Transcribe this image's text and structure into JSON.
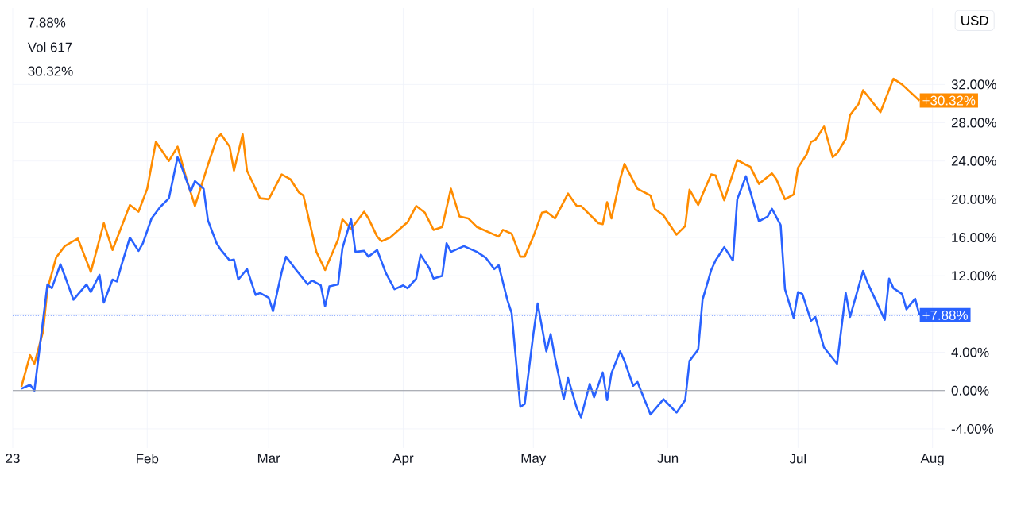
{
  "chart_data": {
    "type": "line",
    "xlim": [
      "2023-01-01",
      "2023-08-04"
    ],
    "ylim": [
      -6,
      40
    ],
    "xticks": [
      {
        "value": "2023-01-01",
        "label": "23"
      },
      {
        "value": "2023-02-01",
        "label": "Feb"
      },
      {
        "value": "2023-03-01",
        "label": "Mar"
      },
      {
        "value": "2023-04-01",
        "label": "Apr"
      },
      {
        "value": "2023-05-01",
        "label": "May"
      },
      {
        "value": "2023-06-01",
        "label": "Jun"
      },
      {
        "value": "2023-07-01",
        "label": "Jul"
      },
      {
        "value": "2023-08-01",
        "label": "Aug"
      }
    ],
    "yticks": [
      {
        "value": -4,
        "label": "-4.00%"
      },
      {
        "value": 0,
        "label": "0.00%"
      },
      {
        "value": 4,
        "label": "4.00%"
      },
      {
        "value": 8,
        "label": null
      },
      {
        "value": 12,
        "label": "12.00%"
      },
      {
        "value": 16,
        "label": "16.00%"
      },
      {
        "value": 20,
        "label": "20.00%"
      },
      {
        "value": 24,
        "label": "24.00%"
      },
      {
        "value": 28,
        "label": "28.00%"
      },
      {
        "value": 32,
        "label": "32.00%"
      }
    ],
    "grid": true,
    "series": [
      {
        "color": "#ff8c00",
        "x": [
          "2023-01-03",
          "2023-01-05",
          "2023-01-06",
          "2023-01-08",
          "2023-01-09",
          "2023-01-11",
          "2023-01-13",
          "2023-01-16",
          "2023-01-19",
          "2023-01-22",
          "2023-01-24",
          "2023-01-28",
          "2023-01-30",
          "2023-02-01",
          "2023-02-03",
          "2023-02-06",
          "2023-02-08",
          "2023-02-10",
          "2023-02-12",
          "2023-02-15",
          "2023-02-17",
          "2023-02-18",
          "2023-02-20",
          "2023-02-21",
          "2023-02-23",
          "2023-02-24",
          "2023-02-27",
          "2023-03-01",
          "2023-03-04",
          "2023-03-06",
          "2023-03-08",
          "2023-03-09",
          "2023-03-12",
          "2023-03-14",
          "2023-03-17",
          "2023-03-18",
          "2023-03-20",
          "2023-03-23",
          "2023-03-24",
          "2023-03-26",
          "2023-03-27",
          "2023-03-29",
          "2023-04-02",
          "2023-04-04",
          "2023-04-06",
          "2023-04-08",
          "2023-04-10",
          "2023-04-12",
          "2023-04-14",
          "2023-04-16",
          "2023-04-18",
          "2023-04-23",
          "2023-04-24",
          "2023-04-26",
          "2023-04-28",
          "2023-04-29",
          "2023-05-01",
          "2023-05-03",
          "2023-05-04",
          "2023-05-06",
          "2023-05-09",
          "2023-05-11",
          "2023-05-12",
          "2023-05-16",
          "2023-05-17",
          "2023-05-18",
          "2023-05-19",
          "2023-05-21",
          "2023-05-22",
          "2023-05-25",
          "2023-05-28",
          "2023-05-29",
          "2023-05-31",
          "2023-06-03",
          "2023-06-05",
          "2023-06-06",
          "2023-06-08",
          "2023-06-09",
          "2023-06-11",
          "2023-06-12",
          "2023-06-14",
          "2023-06-17",
          "2023-06-19",
          "2023-06-20",
          "2023-06-22",
          "2023-06-25",
          "2023-06-26",
          "2023-06-28",
          "2023-06-30",
          "2023-07-01",
          "2023-07-03",
          "2023-07-04",
          "2023-07-05",
          "2023-07-07",
          "2023-07-09",
          "2023-07-10",
          "2023-07-12",
          "2023-07-13",
          "2023-07-15",
          "2023-07-16",
          "2023-07-20",
          "2023-07-23",
          "2023-07-25",
          "2023-07-29"
        ],
        "values": [
          0.4,
          3.7,
          2.8,
          6.2,
          10.6,
          13.9,
          15.1,
          15.9,
          12.4,
          17.5,
          14.7,
          19.4,
          18.7,
          21.1,
          26.0,
          24.0,
          25.5,
          22.2,
          19.3,
          23.6,
          26.3,
          26.8,
          25.5,
          23.0,
          26.8,
          23.0,
          20.1,
          20.0,
          22.6,
          22.1,
          20.7,
          20.4,
          14.5,
          12.6,
          15.8,
          17.9,
          16.9,
          18.7,
          18.0,
          16.1,
          15.6,
          16.0,
          17.6,
          19.3,
          18.6,
          16.8,
          17.1,
          21.1,
          18.2,
          18.0,
          17.1,
          16.1,
          16.8,
          16.4,
          14.0,
          14.0,
          16.1,
          18.6,
          18.7,
          18.0,
          20.6,
          19.3,
          19.3,
          17.5,
          17.4,
          19.7,
          18.0,
          22.1,
          23.7,
          21.1,
          20.4,
          19.0,
          18.3,
          16.3,
          17.2,
          21.0,
          19.4,
          20.5,
          22.6,
          22.5,
          19.9,
          24.1,
          23.6,
          23.4,
          21.6,
          22.7,
          22.1,
          20.0,
          20.5,
          23.3,
          24.7,
          26.0,
          26.2,
          27.6,
          24.4,
          24.8,
          26.3,
          28.8,
          30.0,
          31.4,
          29.1,
          32.6,
          32.0,
          30.3
        ]
      },
      {
        "color": "#2962ff",
        "x": [
          "2023-01-03",
          "2023-01-05",
          "2023-01-06",
          "2023-01-09",
          "2023-01-10",
          "2023-01-12",
          "2023-01-13",
          "2023-01-15",
          "2023-01-18",
          "2023-01-19",
          "2023-01-21",
          "2023-01-22",
          "2023-01-24",
          "2023-01-25",
          "2023-01-26",
          "2023-01-28",
          "2023-01-30",
          "2023-01-31",
          "2023-02-02",
          "2023-02-04",
          "2023-02-06",
          "2023-02-08",
          "2023-02-09",
          "2023-02-11",
          "2023-02-12",
          "2023-02-14",
          "2023-02-15",
          "2023-02-17",
          "2023-02-18",
          "2023-02-20",
          "2023-02-21",
          "2023-02-22",
          "2023-02-24",
          "2023-02-26",
          "2023-02-27",
          "2023-03-01",
          "2023-03-02",
          "2023-03-04",
          "2023-03-05",
          "2023-03-07",
          "2023-03-10",
          "2023-03-11",
          "2023-03-13",
          "2023-03-14",
          "2023-03-15",
          "2023-03-17",
          "2023-03-18",
          "2023-03-20",
          "2023-03-21",
          "2023-03-23",
          "2023-03-24",
          "2023-03-26",
          "2023-03-28",
          "2023-03-30",
          "2023-04-01",
          "2023-04-02",
          "2023-04-04",
          "2023-04-05",
          "2023-04-07",
          "2023-04-08",
          "2023-04-10",
          "2023-04-11",
          "2023-04-12",
          "2023-04-15",
          "2023-04-18",
          "2023-04-20",
          "2023-04-22",
          "2023-04-23",
          "2023-04-25",
          "2023-04-26",
          "2023-04-28",
          "2023-04-29",
          "2023-05-01",
          "2023-05-02",
          "2023-05-04",
          "2023-05-05",
          "2023-05-06",
          "2023-05-08",
          "2023-05-09",
          "2023-05-11",
          "2023-05-12",
          "2023-05-14",
          "2023-05-15",
          "2023-05-17",
          "2023-05-18",
          "2023-05-19",
          "2023-05-21",
          "2023-05-22",
          "2023-05-24",
          "2023-05-25",
          "2023-05-28",
          "2023-05-31",
          "2023-06-03",
          "2023-06-05",
          "2023-06-06",
          "2023-06-08",
          "2023-06-09",
          "2023-06-11",
          "2023-06-12",
          "2023-06-14",
          "2023-06-16",
          "2023-06-17",
          "2023-06-19",
          "2023-06-20",
          "2023-06-22",
          "2023-06-24",
          "2023-06-25",
          "2023-06-27",
          "2023-06-28",
          "2023-06-30",
          "2023-07-01",
          "2023-07-02",
          "2023-07-04",
          "2023-07-05",
          "2023-07-07",
          "2023-07-10",
          "2023-07-12",
          "2023-07-13",
          "2023-07-16",
          "2023-07-17",
          "2023-07-21",
          "2023-07-22",
          "2023-07-23",
          "2023-07-25",
          "2023-07-26",
          "2023-07-28",
          "2023-07-29"
        ],
        "values": [
          0.2,
          0.6,
          0.0,
          11.1,
          10.7,
          13.2,
          12.0,
          9.5,
          11.1,
          10.3,
          12.1,
          9.2,
          11.6,
          11.4,
          13.0,
          16.0,
          14.6,
          15.4,
          18.0,
          19.2,
          20.1,
          24.4,
          23.3,
          20.8,
          21.9,
          21.1,
          17.8,
          15.4,
          14.7,
          13.6,
          13.7,
          11.6,
          12.7,
          10.0,
          10.2,
          9.7,
          8.3,
          12.4,
          14.0,
          12.8,
          11.1,
          11.5,
          11.0,
          8.8,
          10.9,
          11.1,
          14.9,
          17.9,
          14.5,
          14.6,
          14.0,
          14.7,
          12.3,
          10.6,
          11.0,
          10.7,
          11.7,
          14.2,
          12.8,
          11.7,
          12.0,
          15.4,
          14.5,
          15.1,
          14.5,
          13.9,
          12.7,
          13.1,
          9.5,
          8.1,
          -1.7,
          -1.4,
          5.9,
          9.1,
          4.1,
          5.9,
          3.4,
          -0.9,
          1.3,
          -1.8,
          -2.8,
          0.7,
          -0.7,
          1.9,
          -1.0,
          1.8,
          4.1,
          3.1,
          0.5,
          0.9,
          -2.5,
          -0.9,
          -2.3,
          -1.0,
          3.1,
          4.3,
          9.5,
          12.6,
          13.6,
          15.0,
          13.6,
          20.0,
          22.4,
          20.8,
          17.7,
          18.2,
          19.0,
          17.3,
          10.6,
          7.6,
          10.3,
          10.1,
          7.3,
          7.7,
          4.5,
          2.8,
          10.2,
          7.7,
          12.5,
          11.3,
          7.4,
          11.7,
          10.7,
          10.1,
          8.5,
          9.6,
          7.9
        ]
      }
    ],
    "ref_lines": [
      {
        "axis": "y",
        "value": 7.88,
        "color": "#2962ff",
        "line_style": "dotted"
      },
      {
        "axis": "y",
        "value": 0,
        "color": "#9598a1",
        "line_style": "solid"
      }
    ],
    "annotations": [
      "7.88%",
      "Vol 617",
      "30.32%",
      "USD",
      {
        "text": "+30.32%",
        "x": "2023-07-29",
        "y": 30.32
      },
      {
        "text": "+7.88%",
        "x": "2023-07-29",
        "y": 7.88
      }
    ]
  }
}
